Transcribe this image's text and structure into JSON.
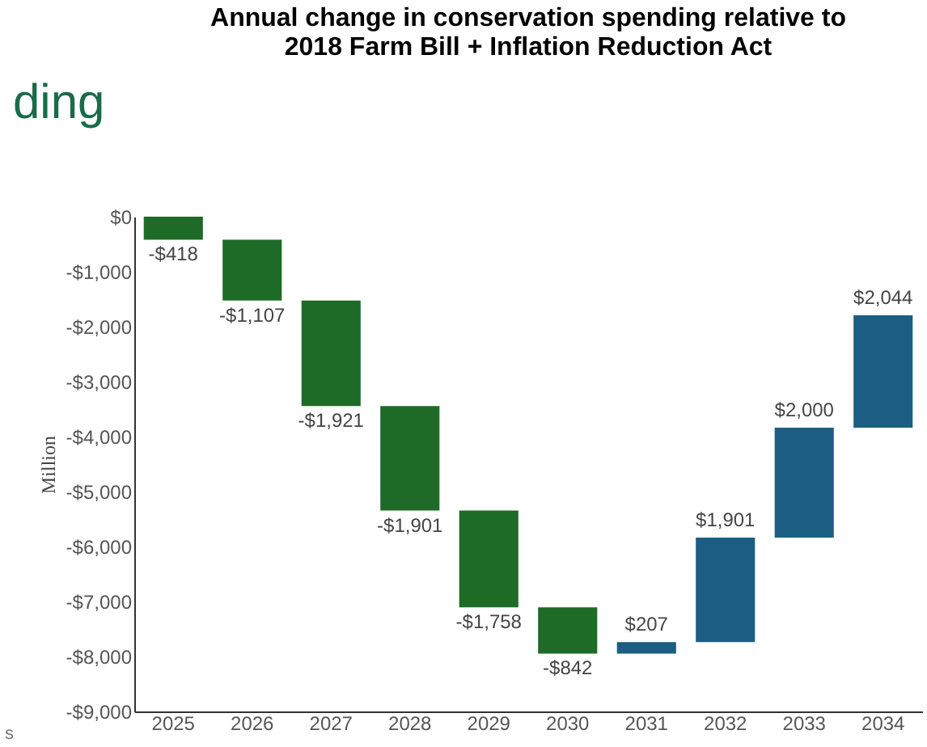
{
  "chart_data": {
    "type": "bar",
    "title": [
      "Annual change in conservation spending relative to",
      "2018 Farm Bill + Inflation Reduction Act"
    ],
    "ylabel": "Million",
    "categories": [
      "2025",
      "2026",
      "2027",
      "2028",
      "2029",
      "2030",
      "2031",
      "2032",
      "2033",
      "2034"
    ],
    "values": [
      -418,
      -1107,
      -1921,
      -1901,
      -1758,
      -842,
      207,
      1901,
      2000,
      2044
    ],
    "base": [
      0,
      -418,
      -1525,
      -3446,
      -5347,
      -7105,
      -7947,
      -7740,
      -5839,
      -3839
    ],
    "colors": [
      "#1e6b27",
      "#1e6b27",
      "#1e6b27",
      "#1e6b27",
      "#1e6b27",
      "#1e6b27",
      "#1c5e83",
      "#1c5e83",
      "#1c5e83",
      "#1c5e83"
    ],
    "value_labels": [
      "-$418",
      "-$1,107",
      "-$1,921",
      "-$1,901",
      "-$1,758",
      "-$842",
      "$207",
      "$1,901",
      "$2,000",
      "$2,044"
    ],
    "ylim": [
      -9000,
      0
    ],
    "yticks": [
      {
        "value": 0,
        "label": "$0"
      },
      {
        "value": -1000,
        "label": "-$1,000"
      },
      {
        "value": -2000,
        "label": "-$2,000"
      },
      {
        "value": -3000,
        "label": "-$3,000"
      },
      {
        "value": -4000,
        "label": "-$4,000"
      },
      {
        "value": -5000,
        "label": "-$5,000"
      },
      {
        "value": -6000,
        "label": "-$6,000"
      },
      {
        "value": -7000,
        "label": "-$7,000"
      },
      {
        "value": -8000,
        "label": "-$8,000"
      },
      {
        "value": -9000,
        "label": "-$9,000"
      }
    ],
    "annotations": [
      "ding",
      "s"
    ],
    "grid": false
  }
}
